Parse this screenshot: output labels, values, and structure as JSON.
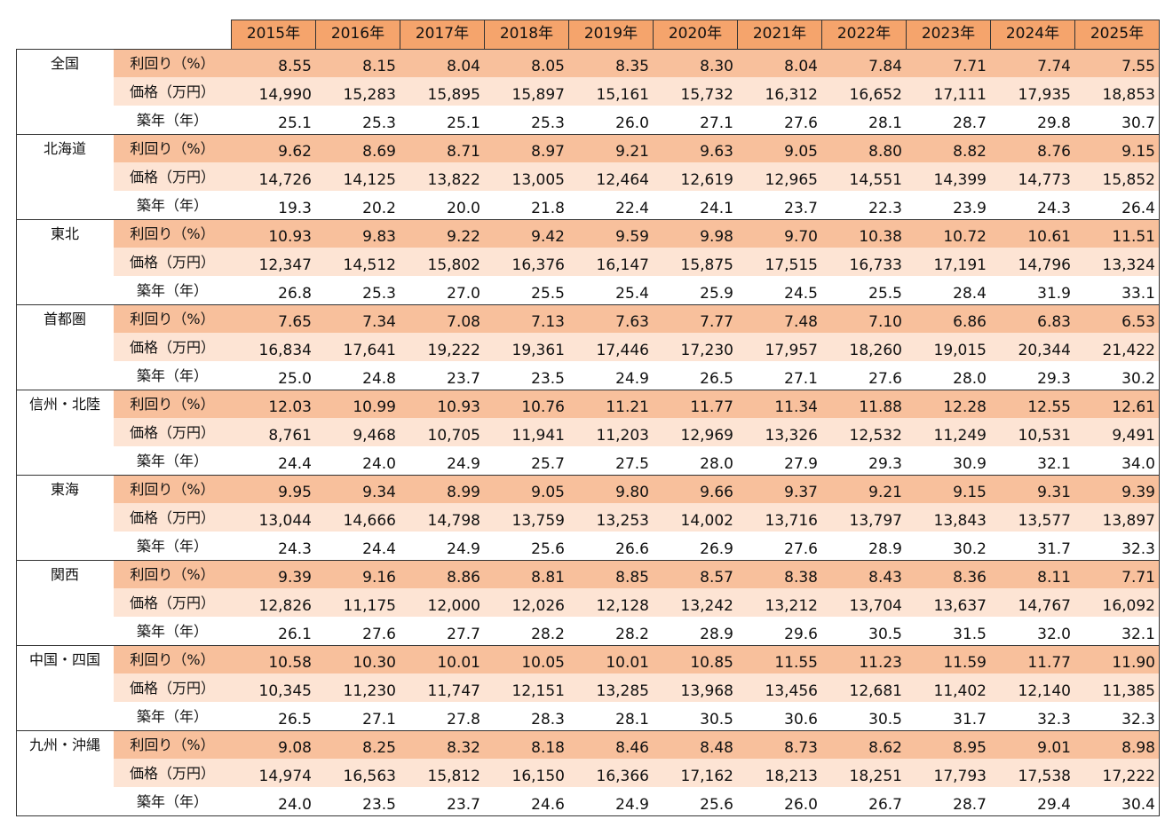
{
  "table": {
    "header": {
      "years": [
        "2015年",
        "2016年",
        "2017年",
        "2018年",
        "2019年",
        "2020年",
        "2021年",
        "2022年",
        "2023年",
        "2024年",
        "2025年"
      ]
    },
    "groups": [
      {
        "region": "全国",
        "rows": [
          {
            "label": "利回り（%）",
            "values": [
              "8.55",
              "8.15",
              "8.04",
              "8.05",
              "8.35",
              "8.30",
              "8.04",
              "7.84",
              "7.71",
              "7.74",
              "7.55"
            ]
          },
          {
            "label": "価格（万円）",
            "values": [
              "14,990",
              "15,283",
              "15,895",
              "15,897",
              "15,161",
              "15,732",
              "16,312",
              "16,652",
              "17,111",
              "17,935",
              "18,853"
            ]
          },
          {
            "label": "築年（年）",
            "values": [
              "25.1",
              "25.3",
              "25.1",
              "25.3",
              "26.0",
              "27.1",
              "27.6",
              "28.1",
              "28.7",
              "29.8",
              "30.7"
            ]
          }
        ]
      },
      {
        "region": "北海道",
        "rows": [
          {
            "label": "利回り（%）",
            "values": [
              "9.62",
              "8.69",
              "8.71",
              "8.97",
              "9.21",
              "9.63",
              "9.05",
              "8.80",
              "8.82",
              "8.76",
              "9.15"
            ]
          },
          {
            "label": "価格（万円）",
            "values": [
              "14,726",
              "14,125",
              "13,822",
              "13,005",
              "12,464",
              "12,619",
              "12,965",
              "14,551",
              "14,399",
              "14,773",
              "15,852"
            ]
          },
          {
            "label": "築年（年）",
            "values": [
              "19.3",
              "20.2",
              "20.0",
              "21.8",
              "22.4",
              "24.1",
              "23.7",
              "22.3",
              "23.9",
              "24.3",
              "26.4"
            ]
          }
        ]
      },
      {
        "region": "東北",
        "rows": [
          {
            "label": "利回り（%）",
            "values": [
              "10.93",
              "9.83",
              "9.22",
              "9.42",
              "9.59",
              "9.98",
              "9.70",
              "10.38",
              "10.72",
              "10.61",
              "11.51"
            ]
          },
          {
            "label": "価格（万円）",
            "values": [
              "12,347",
              "14,512",
              "15,802",
              "16,376",
              "16,147",
              "15,875",
              "17,515",
              "16,733",
              "17,191",
              "14,796",
              "13,324"
            ]
          },
          {
            "label": "築年（年）",
            "values": [
              "26.8",
              "25.3",
              "27.0",
              "25.5",
              "25.4",
              "25.9",
              "24.5",
              "25.5",
              "28.4",
              "31.9",
              "33.1"
            ]
          }
        ]
      },
      {
        "region": "首都圏",
        "rows": [
          {
            "label": "利回り（%）",
            "values": [
              "7.65",
              "7.34",
              "7.08",
              "7.13",
              "7.63",
              "7.77",
              "7.48",
              "7.10",
              "6.86",
              "6.83",
              "6.53"
            ]
          },
          {
            "label": "価格（万円）",
            "values": [
              "16,834",
              "17,641",
              "19,222",
              "19,361",
              "17,446",
              "17,230",
              "17,957",
              "18,260",
              "19,015",
              "20,344",
              "21,422"
            ]
          },
          {
            "label": "築年（年）",
            "values": [
              "25.0",
              "24.8",
              "23.7",
              "23.5",
              "24.9",
              "26.5",
              "27.1",
              "27.6",
              "28.0",
              "29.3",
              "30.2"
            ]
          }
        ]
      },
      {
        "region": "信州・北陸",
        "rows": [
          {
            "label": "利回り（%）",
            "values": [
              "12.03",
              "10.99",
              "10.93",
              "10.76",
              "11.21",
              "11.77",
              "11.34",
              "11.88",
              "12.28",
              "12.55",
              "12.61"
            ]
          },
          {
            "label": "価格（万円）",
            "values": [
              "8,761",
              "9,468",
              "10,705",
              "11,941",
              "11,203",
              "12,969",
              "13,326",
              "12,532",
              "11,249",
              "10,531",
              "9,491"
            ]
          },
          {
            "label": "築年（年）",
            "values": [
              "24.4",
              "24.0",
              "24.9",
              "25.7",
              "27.5",
              "28.0",
              "27.9",
              "29.3",
              "30.9",
              "32.1",
              "34.0"
            ]
          }
        ]
      },
      {
        "region": "東海",
        "rows": [
          {
            "label": "利回り（%）",
            "values": [
              "9.95",
              "9.34",
              "8.99",
              "9.05",
              "9.80",
              "9.66",
              "9.37",
              "9.21",
              "9.15",
              "9.31",
              "9.39"
            ]
          },
          {
            "label": "価格（万円）",
            "values": [
              "13,044",
              "14,666",
              "14,798",
              "13,759",
              "13,253",
              "14,002",
              "13,716",
              "13,797",
              "13,843",
              "13,577",
              "13,897"
            ]
          },
          {
            "label": "築年（年）",
            "values": [
              "24.3",
              "24.4",
              "24.9",
              "25.6",
              "26.6",
              "26.9",
              "27.6",
              "28.9",
              "30.2",
              "31.7",
              "32.3"
            ]
          }
        ]
      },
      {
        "region": "関西",
        "rows": [
          {
            "label": "利回り（%）",
            "values": [
              "9.39",
              "9.16",
              "8.86",
              "8.81",
              "8.85",
              "8.57",
              "8.38",
              "8.43",
              "8.36",
              "8.11",
              "7.71"
            ]
          },
          {
            "label": "価格（万円）",
            "values": [
              "12,826",
              "11,175",
              "12,000",
              "12,026",
              "12,128",
              "13,242",
              "13,212",
              "13,704",
              "13,637",
              "14,767",
              "16,092"
            ]
          },
          {
            "label": "築年（年）",
            "values": [
              "26.1",
              "27.6",
              "27.7",
              "28.2",
              "28.2",
              "28.9",
              "29.6",
              "30.5",
              "31.5",
              "32.0",
              "32.1"
            ]
          }
        ]
      },
      {
        "region": "中国・四国",
        "rows": [
          {
            "label": "利回り（%）",
            "values": [
              "10.58",
              "10.30",
              "10.01",
              "10.05",
              "10.01",
              "10.85",
              "11.55",
              "11.23",
              "11.59",
              "11.77",
              "11.90"
            ]
          },
          {
            "label": "価格（万円）",
            "values": [
              "10,345",
              "11,230",
              "11,747",
              "12,151",
              "13,285",
              "13,968",
              "13,456",
              "12,681",
              "11,402",
              "12,140",
              "11,385"
            ]
          },
          {
            "label": "築年（年）",
            "values": [
              "26.5",
              "27.1",
              "27.8",
              "28.3",
              "28.1",
              "30.5",
              "30.6",
              "30.5",
              "31.7",
              "32.3",
              "32.3"
            ]
          }
        ]
      },
      {
        "region": "九州・沖縄",
        "rows": [
          {
            "label": "利回り（%）",
            "values": [
              "9.08",
              "8.25",
              "8.32",
              "8.18",
              "8.46",
              "8.48",
              "8.73",
              "8.62",
              "8.95",
              "9.01",
              "8.98"
            ]
          },
          {
            "label": "価格（万円）",
            "values": [
              "14,974",
              "16,563",
              "15,812",
              "16,150",
              "16,366",
              "17,162",
              "18,213",
              "18,251",
              "17,793",
              "17,538",
              "17,222"
            ]
          },
          {
            "label": "築年（年）",
            "values": [
              "24.0",
              "23.5",
              "23.7",
              "24.6",
              "24.9",
              "25.6",
              "26.0",
              "26.7",
              "28.7",
              "29.4",
              "30.4"
            ]
          }
        ]
      }
    ]
  }
}
